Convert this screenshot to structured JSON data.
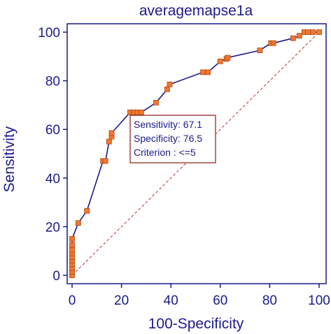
{
  "chart_data": {
    "type": "line",
    "title": "averagemapse1a",
    "xlabel": "100-Specificity",
    "ylabel": "Sensitivity",
    "xlim": [
      0,
      100
    ],
    "ylim": [
      0,
      100
    ],
    "xticks": [
      0,
      20,
      40,
      60,
      80,
      100
    ],
    "yticks": [
      0,
      20,
      40,
      60,
      80,
      100
    ],
    "grid": false,
    "colors": {
      "axis": "#1a1a8c",
      "curve": "#1a1a8c",
      "marker_fill": "#f07830",
      "marker_stroke": "#b04a10",
      "diagonal": "#c03030",
      "annotation_border": "#8b1a1a"
    },
    "series": [
      {
        "name": "",
        "x": [
          0,
          0,
          0,
          0,
          0,
          0,
          0,
          0,
          0,
          0,
          2.5,
          6,
          12.5,
          13.5,
          15,
          16,
          16,
          23.5,
          25,
          26.5,
          28,
          34,
          38.5,
          39.5,
          53,
          55,
          60,
          62.5,
          63,
          76,
          80.5,
          81.5,
          89.5,
          92,
          94,
          95.5,
          97.5,
          100
        ],
        "y": [
          0,
          1.5,
          3,
          4.5,
          6,
          7.5,
          9,
          10.5,
          12.5,
          15,
          21.5,
          26.5,
          47,
          47,
          55,
          57,
          58.5,
          67,
          67,
          67,
          67,
          71,
          76.5,
          78.5,
          83.5,
          83.5,
          88,
          89,
          89.5,
          92.5,
          95.5,
          95.5,
          97.5,
          98.5,
          100,
          100,
          100,
          100
        ]
      }
    ],
    "diagonal": {
      "from": [
        0,
        0
      ],
      "to": [
        100,
        100
      ]
    },
    "annotation": {
      "lines": [
        "Sensitivity: 67.1",
        "Specificity: 76.5",
        "Criterion : <=5"
      ]
    }
  }
}
